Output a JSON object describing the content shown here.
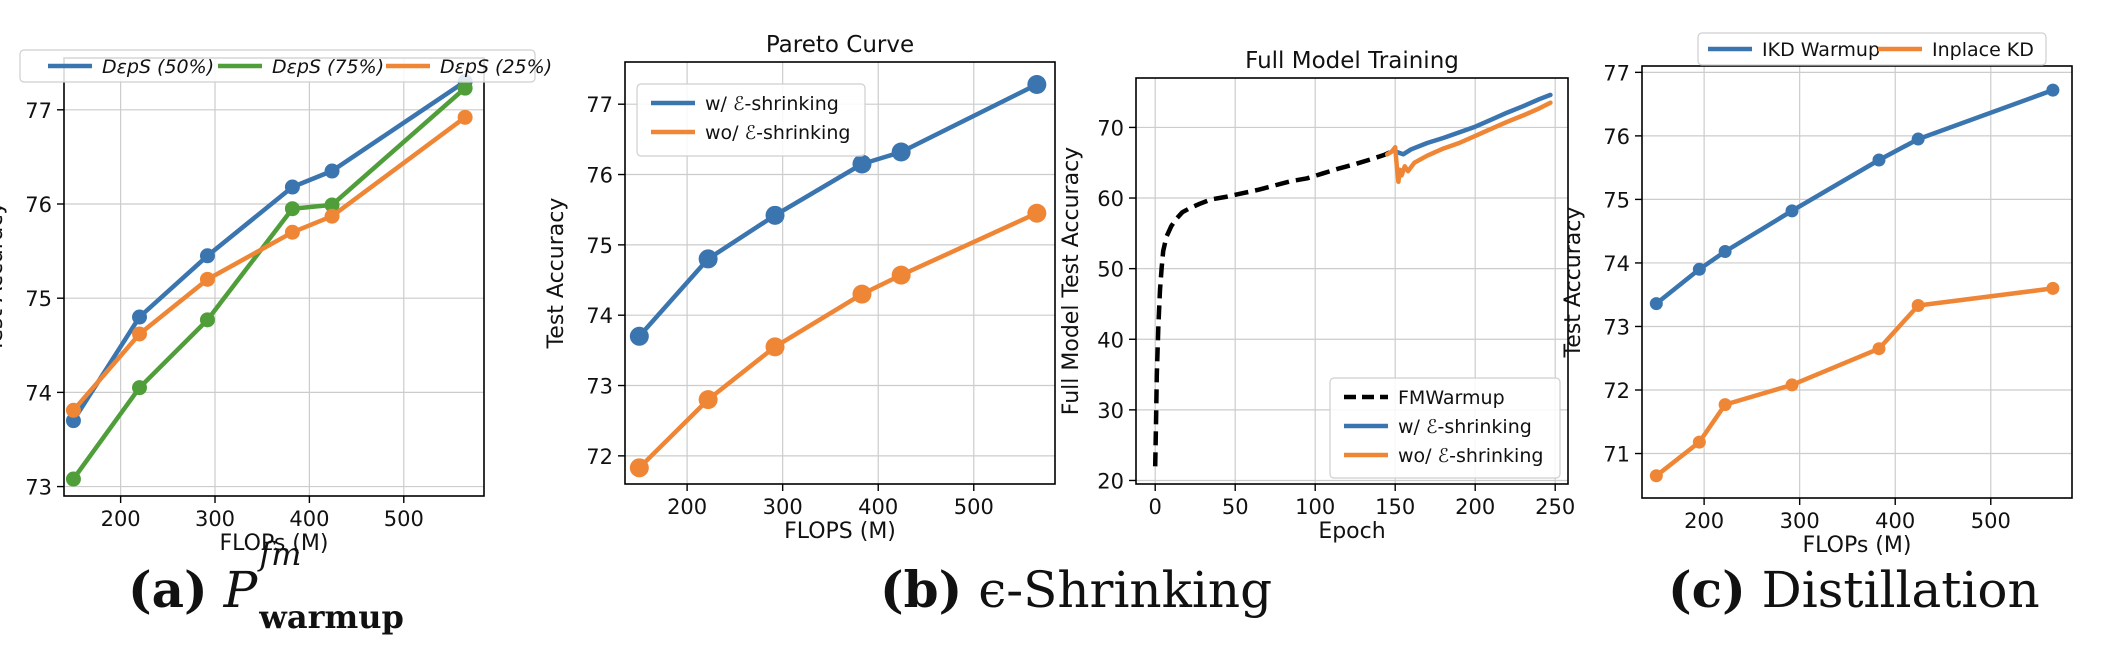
{
  "captions": {
    "a_label": "(a)",
    "a_math": "P",
    "a_sup": "fm",
    "a_sub": "warmup",
    "b_label": "(b)",
    "b_text": "ϵ-Shrinking",
    "c_label": "(c)",
    "c_text": "Distillation"
  },
  "colors": {
    "blue": "#3a75af",
    "green": "#4f9e3a",
    "orange": "#ef8636",
    "black": "#000000",
    "grid": "#cccccc"
  },
  "chart_data": [
    {
      "type": "line",
      "title": "",
      "xlabel": "FLOPs (M)",
      "ylabel": "Test Accuracy",
      "xlim": [
        140,
        585
      ],
      "ylim": [
        72.9,
        77.55
      ],
      "xticks": [
        200,
        300,
        400,
        500
      ],
      "yticks": [
        73,
        74,
        75,
        76,
        77
      ],
      "legend": "top",
      "x": [
        150,
        220,
        292,
        382,
        424,
        565
      ],
      "series": [
        {
          "name": "DεpS (50%)",
          "color": "#3a75af",
          "values": [
            73.7,
            74.8,
            75.45,
            76.18,
            76.35,
            77.3
          ]
        },
        {
          "name": "DεpS (75%)",
          "color": "#4f9e3a",
          "values": [
            73.08,
            74.05,
            74.77,
            75.95,
            75.99,
            77.23
          ]
        },
        {
          "name": "DεpS (25%)",
          "color": "#ef8636",
          "values": [
            73.81,
            74.62,
            75.2,
            75.7,
            75.87,
            76.92
          ]
        }
      ]
    },
    {
      "type": "line",
      "title": "Pareto Curve",
      "xlabel": "FLOPS (M)",
      "ylabel": "Test Accuracy",
      "xlim": [
        135,
        585
      ],
      "ylim": [
        71.6,
        77.6
      ],
      "xticks": [
        200,
        300,
        400,
        500
      ],
      "yticks": [
        72,
        73,
        74,
        75,
        76,
        77
      ],
      "legend": "top-left",
      "x": [
        150,
        222,
        292,
        383,
        424,
        566
      ],
      "series": [
        {
          "name": "w/ ℰ-shrinking",
          "color": "#3a75af",
          "values": [
            73.7,
            74.8,
            75.42,
            76.15,
            76.32,
            77.28
          ]
        },
        {
          "name": "wo/ ℰ-shrinking",
          "color": "#ef8636",
          "values": [
            71.83,
            72.8,
            73.55,
            74.3,
            74.57,
            75.45
          ]
        }
      ]
    },
    {
      "type": "line",
      "title": "Full Model Training",
      "xlabel": "Epoch",
      "ylabel": "Full Model Test Accuracy",
      "xlim": [
        -12,
        258
      ],
      "ylim": [
        19.5,
        77
      ],
      "xticks": [
        0,
        50,
        100,
        150,
        200,
        250
      ],
      "yticks": [
        20,
        30,
        40,
        50,
        60,
        70
      ],
      "legend": "bottom-right",
      "series": [
        {
          "name": "FMWarmup",
          "color": "#000000",
          "dashed": true,
          "x": [
            0,
            0.5,
            1,
            2,
            3,
            4,
            5,
            7,
            10,
            13,
            17,
            22,
            28,
            35,
            45,
            55,
            65,
            75,
            85,
            95,
            105,
            115,
            125,
            135,
            143,
            150
          ],
          "values": [
            22,
            28,
            35,
            42,
            47,
            50,
            52.5,
            54.5,
            56,
            57,
            58,
            58.6,
            59.2,
            59.8,
            60.2,
            60.7,
            61.2,
            61.8,
            62.4,
            62.8,
            63.5,
            64.2,
            64.8,
            65.5,
            66.1,
            66.8
          ]
        },
        {
          "name": "w/ ℰ-shrinking",
          "color": "#3a75af",
          "x": [
            150,
            155,
            160,
            170,
            180,
            190,
            200,
            210,
            220,
            230,
            240,
            247
          ],
          "values": [
            66.6,
            66.2,
            66.9,
            67.8,
            68.5,
            69.3,
            70.1,
            71.1,
            72.1,
            73.0,
            74.0,
            74.6
          ]
        },
        {
          "name": "wo/ ℰ-shrinking",
          "color": "#ef8636",
          "x": [
            145,
            148,
            150,
            151,
            152,
            153,
            154,
            156,
            158,
            162,
            166,
            170,
            180,
            190,
            200,
            210,
            220,
            230,
            240,
            247
          ],
          "values": [
            66.2,
            66.6,
            67.2,
            64.5,
            62.3,
            64.0,
            63.2,
            64.5,
            63.8,
            65.0,
            65.5,
            66.0,
            67.0,
            67.8,
            68.8,
            69.8,
            70.8,
            71.7,
            72.7,
            73.5
          ]
        }
      ]
    },
    {
      "type": "line",
      "title": "",
      "xlabel": "FLOPs (M)",
      "ylabel": "Test Accuracy",
      "xlim": [
        135,
        585
      ],
      "ylim": [
        70.3,
        77.1
      ],
      "xticks": [
        200,
        300,
        400,
        500
      ],
      "yticks": [
        71,
        72,
        73,
        74,
        75,
        76,
        77
      ],
      "legend": "top",
      "x": [
        150,
        195,
        222,
        292,
        383,
        424,
        565
      ],
      "series": [
        {
          "name": "IKD Warmup",
          "color": "#3a75af",
          "values": [
            73.36,
            73.9,
            74.18,
            74.82,
            75.62,
            75.95,
            76.72
          ]
        },
        {
          "name": "Inplace KD",
          "color": "#ef8636",
          "values": [
            70.65,
            71.18,
            71.77,
            72.08,
            72.65,
            73.33,
            73.6
          ]
        }
      ]
    }
  ]
}
